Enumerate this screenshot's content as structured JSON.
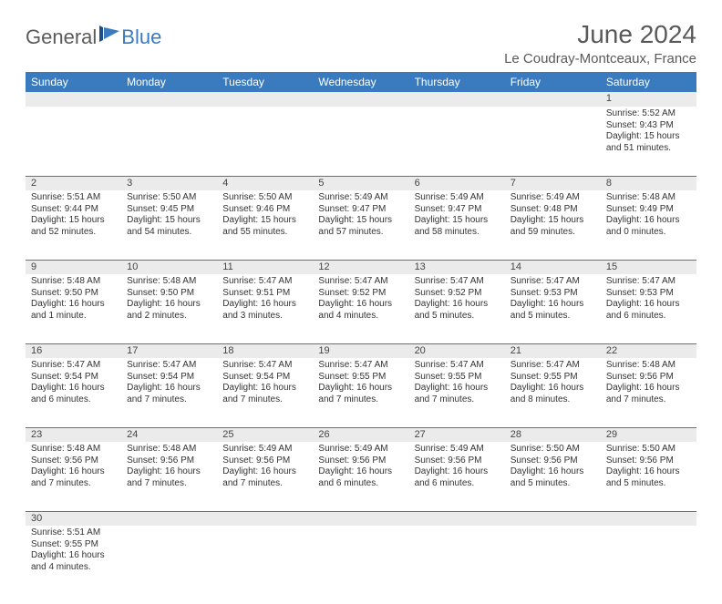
{
  "logo": {
    "part1": "General",
    "part2": "Blue"
  },
  "title": "June 2024",
  "subtitle": "Le Coudray-Montceaux, France",
  "colors": {
    "header_bg": "#3a7bbf",
    "header_text": "#ffffff",
    "daynum_bg": "#ebebeb",
    "border": "#3a7bbf",
    "title_color": "#595959",
    "logo_gray": "#5b5b5b",
    "logo_blue": "#3a7bbf"
  },
  "weekdays": [
    "Sunday",
    "Monday",
    "Tuesday",
    "Wednesday",
    "Thursday",
    "Friday",
    "Saturday"
  ],
  "weeks": [
    [
      null,
      null,
      null,
      null,
      null,
      null,
      {
        "d": "1",
        "sr": "Sunrise: 5:52 AM",
        "ss": "Sunset: 9:43 PM",
        "dl1": "Daylight: 15 hours",
        "dl2": "and 51 minutes."
      }
    ],
    [
      {
        "d": "2",
        "sr": "Sunrise: 5:51 AM",
        "ss": "Sunset: 9:44 PM",
        "dl1": "Daylight: 15 hours",
        "dl2": "and 52 minutes."
      },
      {
        "d": "3",
        "sr": "Sunrise: 5:50 AM",
        "ss": "Sunset: 9:45 PM",
        "dl1": "Daylight: 15 hours",
        "dl2": "and 54 minutes."
      },
      {
        "d": "4",
        "sr": "Sunrise: 5:50 AM",
        "ss": "Sunset: 9:46 PM",
        "dl1": "Daylight: 15 hours",
        "dl2": "and 55 minutes."
      },
      {
        "d": "5",
        "sr": "Sunrise: 5:49 AM",
        "ss": "Sunset: 9:47 PM",
        "dl1": "Daylight: 15 hours",
        "dl2": "and 57 minutes."
      },
      {
        "d": "6",
        "sr": "Sunrise: 5:49 AM",
        "ss": "Sunset: 9:47 PM",
        "dl1": "Daylight: 15 hours",
        "dl2": "and 58 minutes."
      },
      {
        "d": "7",
        "sr": "Sunrise: 5:49 AM",
        "ss": "Sunset: 9:48 PM",
        "dl1": "Daylight: 15 hours",
        "dl2": "and 59 minutes."
      },
      {
        "d": "8",
        "sr": "Sunrise: 5:48 AM",
        "ss": "Sunset: 9:49 PM",
        "dl1": "Daylight: 16 hours",
        "dl2": "and 0 minutes."
      }
    ],
    [
      {
        "d": "9",
        "sr": "Sunrise: 5:48 AM",
        "ss": "Sunset: 9:50 PM",
        "dl1": "Daylight: 16 hours",
        "dl2": "and 1 minute."
      },
      {
        "d": "10",
        "sr": "Sunrise: 5:48 AM",
        "ss": "Sunset: 9:50 PM",
        "dl1": "Daylight: 16 hours",
        "dl2": "and 2 minutes."
      },
      {
        "d": "11",
        "sr": "Sunrise: 5:47 AM",
        "ss": "Sunset: 9:51 PM",
        "dl1": "Daylight: 16 hours",
        "dl2": "and 3 minutes."
      },
      {
        "d": "12",
        "sr": "Sunrise: 5:47 AM",
        "ss": "Sunset: 9:52 PM",
        "dl1": "Daylight: 16 hours",
        "dl2": "and 4 minutes."
      },
      {
        "d": "13",
        "sr": "Sunrise: 5:47 AM",
        "ss": "Sunset: 9:52 PM",
        "dl1": "Daylight: 16 hours",
        "dl2": "and 5 minutes."
      },
      {
        "d": "14",
        "sr": "Sunrise: 5:47 AM",
        "ss": "Sunset: 9:53 PM",
        "dl1": "Daylight: 16 hours",
        "dl2": "and 5 minutes."
      },
      {
        "d": "15",
        "sr": "Sunrise: 5:47 AM",
        "ss": "Sunset: 9:53 PM",
        "dl1": "Daylight: 16 hours",
        "dl2": "and 6 minutes."
      }
    ],
    [
      {
        "d": "16",
        "sr": "Sunrise: 5:47 AM",
        "ss": "Sunset: 9:54 PM",
        "dl1": "Daylight: 16 hours",
        "dl2": "and 6 minutes."
      },
      {
        "d": "17",
        "sr": "Sunrise: 5:47 AM",
        "ss": "Sunset: 9:54 PM",
        "dl1": "Daylight: 16 hours",
        "dl2": "and 7 minutes."
      },
      {
        "d": "18",
        "sr": "Sunrise: 5:47 AM",
        "ss": "Sunset: 9:54 PM",
        "dl1": "Daylight: 16 hours",
        "dl2": "and 7 minutes."
      },
      {
        "d": "19",
        "sr": "Sunrise: 5:47 AM",
        "ss": "Sunset: 9:55 PM",
        "dl1": "Daylight: 16 hours",
        "dl2": "and 7 minutes."
      },
      {
        "d": "20",
        "sr": "Sunrise: 5:47 AM",
        "ss": "Sunset: 9:55 PM",
        "dl1": "Daylight: 16 hours",
        "dl2": "and 7 minutes."
      },
      {
        "d": "21",
        "sr": "Sunrise: 5:47 AM",
        "ss": "Sunset: 9:55 PM",
        "dl1": "Daylight: 16 hours",
        "dl2": "and 8 minutes."
      },
      {
        "d": "22",
        "sr": "Sunrise: 5:48 AM",
        "ss": "Sunset: 9:56 PM",
        "dl1": "Daylight: 16 hours",
        "dl2": "and 7 minutes."
      }
    ],
    [
      {
        "d": "23",
        "sr": "Sunrise: 5:48 AM",
        "ss": "Sunset: 9:56 PM",
        "dl1": "Daylight: 16 hours",
        "dl2": "and 7 minutes."
      },
      {
        "d": "24",
        "sr": "Sunrise: 5:48 AM",
        "ss": "Sunset: 9:56 PM",
        "dl1": "Daylight: 16 hours",
        "dl2": "and 7 minutes."
      },
      {
        "d": "25",
        "sr": "Sunrise: 5:49 AM",
        "ss": "Sunset: 9:56 PM",
        "dl1": "Daylight: 16 hours",
        "dl2": "and 7 minutes."
      },
      {
        "d": "26",
        "sr": "Sunrise: 5:49 AM",
        "ss": "Sunset: 9:56 PM",
        "dl1": "Daylight: 16 hours",
        "dl2": "and 6 minutes."
      },
      {
        "d": "27",
        "sr": "Sunrise: 5:49 AM",
        "ss": "Sunset: 9:56 PM",
        "dl1": "Daylight: 16 hours",
        "dl2": "and 6 minutes."
      },
      {
        "d": "28",
        "sr": "Sunrise: 5:50 AM",
        "ss": "Sunset: 9:56 PM",
        "dl1": "Daylight: 16 hours",
        "dl2": "and 5 minutes."
      },
      {
        "d": "29",
        "sr": "Sunrise: 5:50 AM",
        "ss": "Sunset: 9:56 PM",
        "dl1": "Daylight: 16 hours",
        "dl2": "and 5 minutes."
      }
    ],
    [
      {
        "d": "30",
        "sr": "Sunrise: 5:51 AM",
        "ss": "Sunset: 9:55 PM",
        "dl1": "Daylight: 16 hours",
        "dl2": "and 4 minutes."
      },
      null,
      null,
      null,
      null,
      null,
      null
    ]
  ]
}
